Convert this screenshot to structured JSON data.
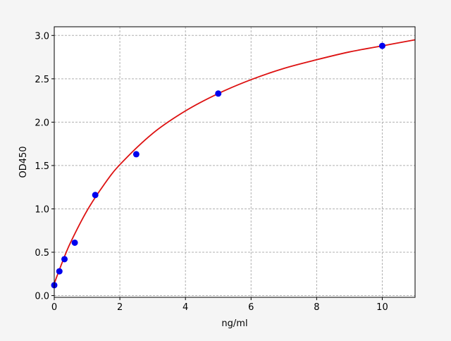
{
  "chart_data": {
    "type": "scatter",
    "title": "",
    "xlabel": "ng/ml",
    "ylabel": "OD450",
    "xlim": [
      0,
      11
    ],
    "ylim": [
      -0.02,
      3.1
    ],
    "xticks": [
      0,
      2,
      4,
      6,
      8,
      10
    ],
    "xtick_labels": [
      "0",
      "2",
      "4",
      "6",
      "8",
      "10"
    ],
    "yticks": [
      0,
      0.5,
      1,
      1.5,
      2,
      2.5,
      3
    ],
    "ytick_labels": [
      "0.0",
      "0.5",
      "1.0",
      "1.5",
      "2.0",
      "2.5",
      "3.0"
    ],
    "grid": true,
    "points": {
      "color": "#0000ee",
      "x": [
        0,
        0.156,
        0.312,
        0.625,
        1.25,
        2.5,
        5,
        10
      ],
      "y": [
        0.12,
        0.28,
        0.42,
        0.61,
        1.16,
        1.63,
        2.33,
        2.88
      ]
    },
    "fit_curve": {
      "color": "#dd1111",
      "x": [
        0,
        0.25,
        0.5,
        1,
        1.5,
        2,
        3,
        4,
        5,
        6,
        7,
        8,
        9,
        10,
        11
      ],
      "y": [
        0.14,
        0.39,
        0.615,
        0.98,
        1.27,
        1.51,
        1.87,
        2.13,
        2.33,
        2.49,
        2.62,
        2.72,
        2.81,
        2.88,
        2.95
      ]
    }
  }
}
